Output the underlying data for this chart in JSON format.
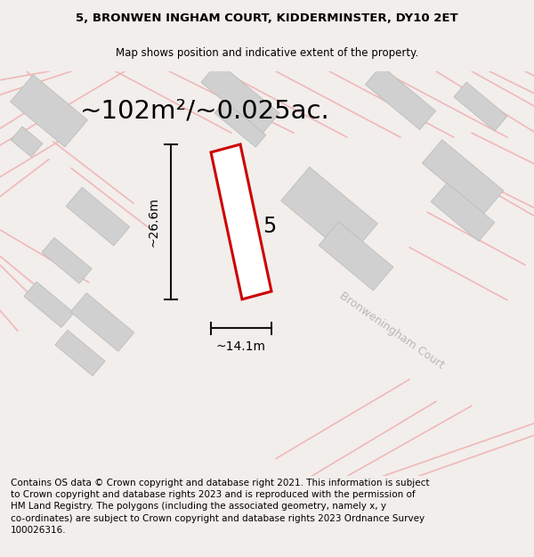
{
  "title_line1": "5, BRONWEN INGHAM COURT, KIDDERMINSTER, DY10 2ET",
  "title_line2": "Map shows position and indicative extent of the property.",
  "area_text": "~102m²/~0.025ac.",
  "dim_width": "~14.1m",
  "dim_height": "~26.6m",
  "plot_number": "5",
  "road_label": "Bronweningham Court",
  "footer_text": "Contains OS data © Crown copyright and database right 2021. This information is subject\nto Crown copyright and database rights 2023 and is reproduced with the permission of\nHM Land Registry. The polygons (including the associated geometry, namely x, y\nco-ordinates) are subject to Crown copyright and database rights 2023 Ordnance Survey\n100026316.",
  "bg_color": "#f2eeeb",
  "map_bg": "#f8f4f2",
  "road_color": "#f0b8b8",
  "building_color": "#d0d0d0",
  "plot_outline_color": "#cc0000",
  "plot_fill": "#ffffff",
  "dim_line_color": "#111111",
  "title_fontsize": 9.5,
  "subtitle_fontsize": 8.5,
  "area_fontsize": 21,
  "dim_fontsize": 10,
  "footer_fontsize": 7.5,
  "road_label_fontsize": 9,
  "road_label_color": "#b8b8b8",
  "plot_number_fontsize": 17
}
